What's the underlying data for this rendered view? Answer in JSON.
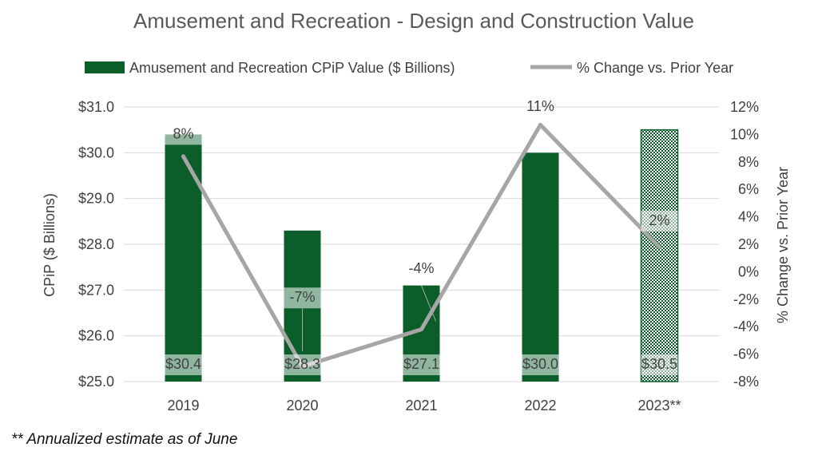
{
  "chart_data": {
    "type": "bar",
    "title": "Amusement and Recreation - Design and Construction Value",
    "categories": [
      "2019",
      "2020",
      "2021",
      "2022",
      "2023**"
    ],
    "series": [
      {
        "name": "Amusement and Recreation CPiP Value ($ Billions)",
        "type": "bar",
        "axis": "left",
        "values": [
          30.4,
          28.3,
          27.1,
          30.0,
          30.5
        ],
        "data_labels": [
          "$30.4",
          "$28.3",
          "$27.1",
          "$30.0",
          "$30.5"
        ],
        "color": "#0b5d2a",
        "estimate_index": 4
      },
      {
        "name": "% Change vs. Prior Year",
        "type": "line",
        "axis": "right",
        "values": [
          8.4,
          -6.9,
          -4.2,
          10.7,
          1.8
        ],
        "data_labels": [
          "8%",
          "-7%",
          "-4%",
          "11%",
          "2%"
        ],
        "color": "#a6a6a6"
      }
    ],
    "ylabel": "CPiP ($ Billions)",
    "ylim": [
      25.0,
      31.0
    ],
    "y_ticks": [
      "$31.0",
      "$30.0",
      "$29.0",
      "$28.0",
      "$27.0",
      "$26.0",
      "$25.0"
    ],
    "y2label": "% Change vs. Prior Year",
    "y2lim": [
      -8,
      12
    ],
    "y2_ticks": [
      "12%",
      "10%",
      "8%",
      "6%",
      "4%",
      "2%",
      "0%",
      "-2%",
      "-4%",
      "-6%",
      "-8%"
    ],
    "legend": "top",
    "grid": true
  },
  "footnote": "** Annualized estimate as of June"
}
